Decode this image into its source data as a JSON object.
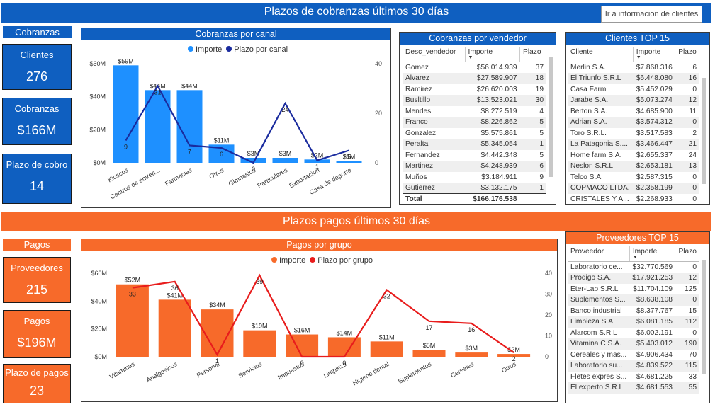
{
  "top": {
    "banner": "Plazos de cobranzas últimos 30 días",
    "nav_button": "Ir a informacion de clientes",
    "tag": "Cobranzas",
    "kpis": [
      {
        "label": "Clientes",
        "value": "276"
      },
      {
        "label": "Cobranzas",
        "value": "$166M"
      },
      {
        "label": "Plazo de cobro",
        "value": "14"
      }
    ],
    "chart_title": "Cobranzas por canal",
    "legend": [
      "Importe",
      "Plazo por canal"
    ]
  },
  "bottom": {
    "banner": "Plazos pagos últimos 30 días",
    "tag": "Pagos",
    "kpis": [
      {
        "label": "Proveedores",
        "value": "215"
      },
      {
        "label": "Pagos",
        "value": "$196M"
      },
      {
        "label": "Plazo de pagos",
        "value": "23"
      }
    ],
    "chart_title": "Pagos por grupo",
    "legend": [
      "Importe",
      "Plazo por grupo"
    ]
  },
  "colors": {
    "blue": "#0f5fc0",
    "bar_blue": "#1e90ff",
    "line_blue": "#1a2b9e",
    "orange": "#f76a2a",
    "bar_orange": "#f76a2a",
    "line_red": "#e81c1c"
  },
  "chart_data": [
    {
      "type": "bar",
      "title": "Cobranzas por canal",
      "categories": [
        "Kioscos",
        "Centros de entren...",
        "Farmacias",
        "Otros",
        "Gimnasios",
        "Particulares",
        "Exportacion",
        "Casa de deporte"
      ],
      "series": [
        {
          "name": "Importe",
          "values": [
            59,
            44,
            44,
            11,
            3,
            3,
            2,
            1
          ],
          "labels": [
            "$59M",
            "$44M",
            "$44M",
            "$11M",
            "$3M",
            "$3M",
            "$2M",
            "$1M"
          ],
          "axis": "left"
        },
        {
          "name": "Plazo por canal",
          "values": [
            9,
            31,
            7,
            6,
            0,
            24,
            1,
            5
          ],
          "axis": "right"
        }
      ],
      "yticks": [
        "$0M",
        "$20M",
        "$40M",
        "$60M"
      ],
      "y2ticks": [
        "0",
        "20",
        "40"
      ],
      "ylim": [
        0,
        60
      ],
      "y2lim": [
        0,
        40
      ]
    },
    {
      "type": "bar",
      "title": "Pagos por grupo",
      "categories": [
        "Vitaminas",
        "Analgesicos",
        "Personal",
        "Servicios",
        "Impuestos",
        "Limpieza",
        "Higiene dental",
        "Suplementos",
        "Cereales",
        "Otros"
      ],
      "series": [
        {
          "name": "Importe",
          "values": [
            52,
            41,
            34,
            19,
            16,
            14,
            11,
            5,
            3,
            2
          ],
          "labels": [
            "$52M",
            "$41M",
            "$34M",
            "$19M",
            "$16M",
            "$14M",
            "$11M",
            "$5M",
            "$3M",
            "$2M"
          ],
          "axis": "left"
        },
        {
          "name": "Plazo por grupo",
          "values": [
            33,
            36,
            1,
            39,
            0,
            0,
            32,
            17,
            16,
            2
          ],
          "axis": "right"
        }
      ],
      "yticks": [
        "$0M",
        "$20M",
        "$40M",
        "$60M"
      ],
      "y2ticks": [
        "0",
        "10",
        "20",
        "30",
        "40"
      ],
      "ylim": [
        0,
        60
      ],
      "y2lim": [
        0,
        40
      ]
    }
  ],
  "vendedor_table": {
    "title": "Cobranzas por vendedor",
    "headers": [
      "Desc_vendedor",
      "Importe",
      "Plazo"
    ],
    "rows": [
      [
        "Gomez",
        "$56.014.939",
        "37"
      ],
      [
        "Alvarez",
        "$27.589.907",
        "18"
      ],
      [
        "Ramirez",
        "$26.620.003",
        "19"
      ],
      [
        "Busltillo",
        "$13.523.021",
        "30"
      ],
      [
        "Mendes",
        "$8.272.519",
        "4"
      ],
      [
        "Franco",
        "$8.226.862",
        "5"
      ],
      [
        "Gonzalez",
        "$5.575.861",
        "5"
      ],
      [
        "Peralta",
        "$5.345.054",
        "1"
      ],
      [
        "Fernandez",
        "$4.442.348",
        "5"
      ],
      [
        "Martinez",
        "$4.248.939",
        "6"
      ],
      [
        "Muños",
        "$3.184.911",
        "9"
      ],
      [
        "Gutierrez",
        "$3.132.175",
        "1"
      ]
    ],
    "total": [
      "Total",
      "$166.176.538",
      ""
    ]
  },
  "clientes_table": {
    "title": "Clientes TOP 15",
    "headers": [
      "Cliente",
      "Importe",
      "Plazo"
    ],
    "rows": [
      [
        "Merlin S.A.",
        "$7.868.316",
        "6"
      ],
      [
        "El Triunfo S.R.L",
        "$6.448.080",
        "16"
      ],
      [
        "Casa Farm",
        "$5.452.029",
        "0"
      ],
      [
        "Jarabe S.A.",
        "$5.073.274",
        "12"
      ],
      [
        "Berton S.A.",
        "$4.685.900",
        "11"
      ],
      [
        "Adrian S.A.",
        "$3.574.312",
        "0"
      ],
      [
        "Toro S.R.L.",
        "$3.517.583",
        "2"
      ],
      [
        "La Patagonia S....",
        "$3.466.447",
        "21"
      ],
      [
        "Home farm S.A.",
        "$2.655.337",
        "24"
      ],
      [
        "Neslon S.R.L",
        "$2.653.181",
        "13"
      ],
      [
        "Telco S.A.",
        "$2.587.315",
        "0"
      ],
      [
        "COPMACO LTDA.",
        "$2.358.199",
        "0"
      ],
      [
        "CRISTALES Y A...",
        "$2.268.933",
        "0"
      ]
    ]
  },
  "proveedores_table": {
    "title": "Proveedores TOP 15",
    "headers": [
      "Proveedor",
      "Importe",
      "Plazo"
    ],
    "rows": [
      [
        "Laboratorio ce...",
        "$32.770.569",
        "0"
      ],
      [
        "Prodigo S.A.",
        "$17.921.253",
        "12"
      ],
      [
        "Eter-Lab S.R.L",
        "$11.704.109",
        "125"
      ],
      [
        "Suplementos S...",
        "$8.638.108",
        "0"
      ],
      [
        "Banco industrial",
        "$8.377.767",
        "15"
      ],
      [
        "Limpieza S.A.",
        "$6.081.185",
        "112"
      ],
      [
        "Alarcom S.R.L",
        "$6.002.191",
        "0"
      ],
      [
        "Vitamina C S.A.",
        "$5.403.012",
        "190"
      ],
      [
        "Cereales y mas...",
        "$4.906.434",
        "70"
      ],
      [
        "Laboratorio su...",
        "$4.839.522",
        "115"
      ],
      [
        "Fletes expres S...",
        "$4.681.225",
        "33"
      ],
      [
        "El experto S.R.L.",
        "$4.681.553",
        "55"
      ]
    ]
  }
}
